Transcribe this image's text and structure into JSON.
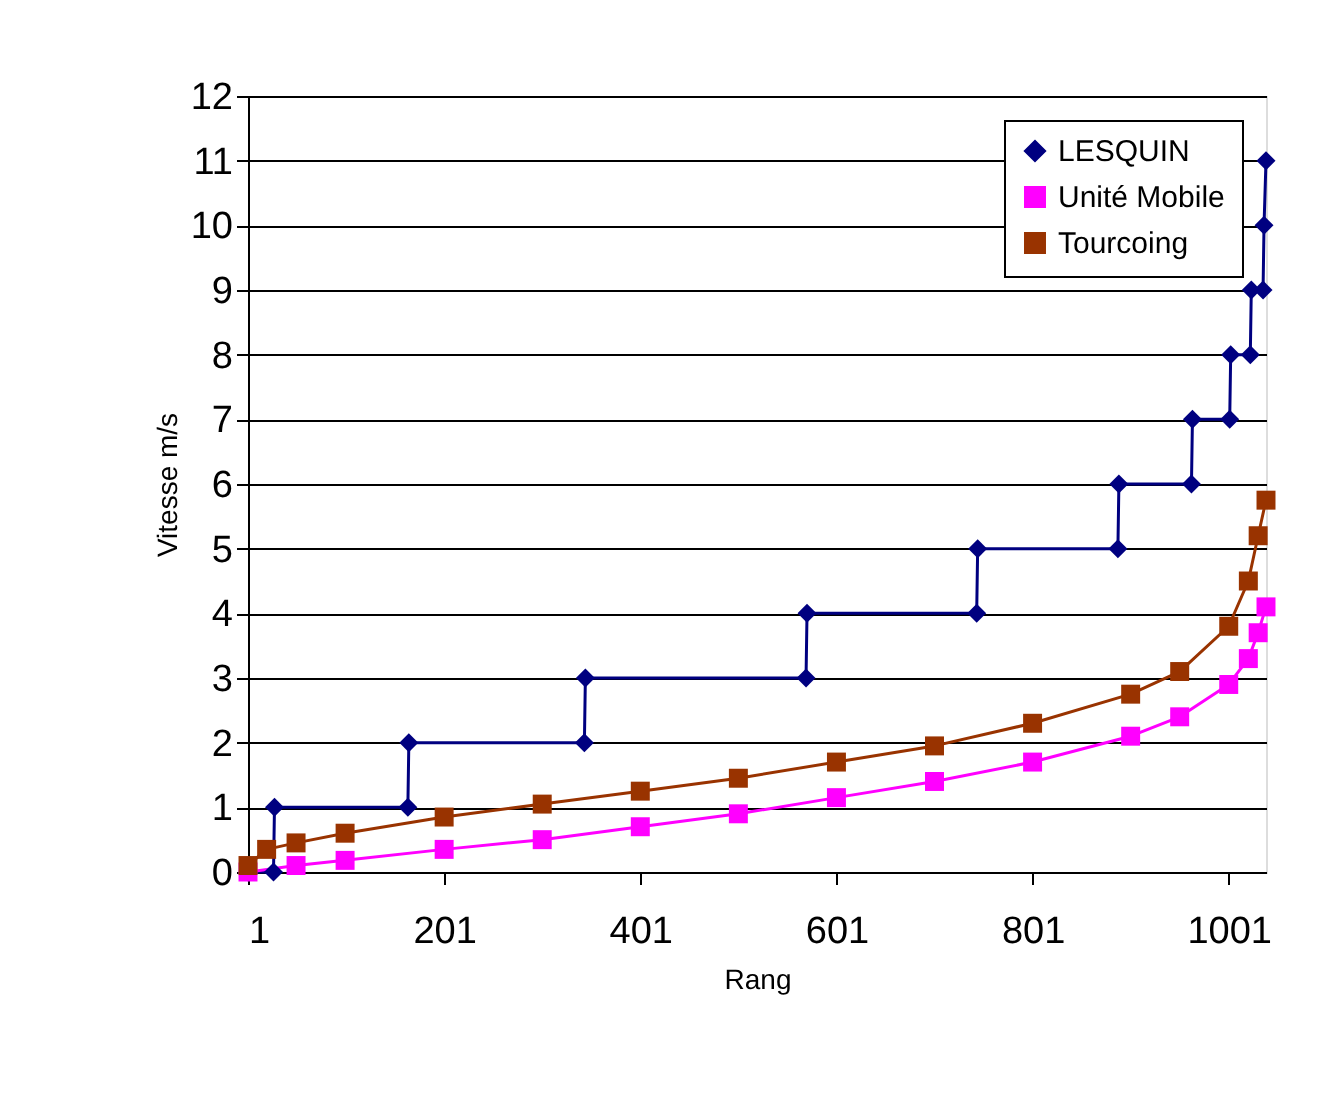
{
  "chart_data": {
    "type": "line",
    "xlabel": "Rang",
    "ylabel": "Vitesse m/s",
    "xlim": [
      1,
      1039
    ],
    "xticks": [
      1,
      201,
      401,
      601,
      801,
      1001
    ],
    "ylim": [
      0,
      12
    ],
    "yticks": [
      0,
      1,
      2,
      3,
      4,
      5,
      6,
      7,
      8,
      9,
      10,
      11,
      12
    ],
    "grid": "y",
    "legend": "top right",
    "line_style": "solid",
    "series": [
      {
        "name": "LESQUIN",
        "color": "#000080",
        "marker": "diamond",
        "x": [
          1,
          27,
          28,
          164,
          165,
          344,
          345,
          570,
          571,
          744,
          745,
          888,
          889,
          963,
          964,
          1002,
          1003,
          1023,
          1024,
          1036,
          1037,
          1039
        ],
        "values": [
          0,
          0,
          1,
          1,
          2,
          2,
          3,
          3,
          4,
          4,
          5,
          5,
          6,
          6,
          7,
          7,
          8,
          8,
          9,
          9,
          10,
          11
        ]
      },
      {
        "name": "Unité Mobile",
        "color": "#ff00ff",
        "marker": "square",
        "x": [
          1,
          50,
          100,
          201,
          301,
          401,
          501,
          601,
          701,
          801,
          901,
          951,
          1001,
          1021,
          1031,
          1039
        ],
        "values": [
          0.0,
          0.1,
          0.18,
          0.35,
          0.5,
          0.7,
          0.9,
          1.15,
          1.4,
          1.7,
          2.1,
          2.4,
          2.9,
          3.3,
          3.7,
          4.1
        ]
      },
      {
        "name": "Tourcoing",
        "color": "#993300",
        "marker": "square",
        "x": [
          1,
          20,
          50,
          100,
          201,
          301,
          401,
          501,
          601,
          701,
          801,
          901,
          951,
          1001,
          1021,
          1031,
          1039
        ],
        "values": [
          0.1,
          0.35,
          0.45,
          0.6,
          0.85,
          1.05,
          1.25,
          1.45,
          1.7,
          1.95,
          2.3,
          2.75,
          3.1,
          3.8,
          4.5,
          5.2,
          5.75
        ]
      }
    ]
  }
}
